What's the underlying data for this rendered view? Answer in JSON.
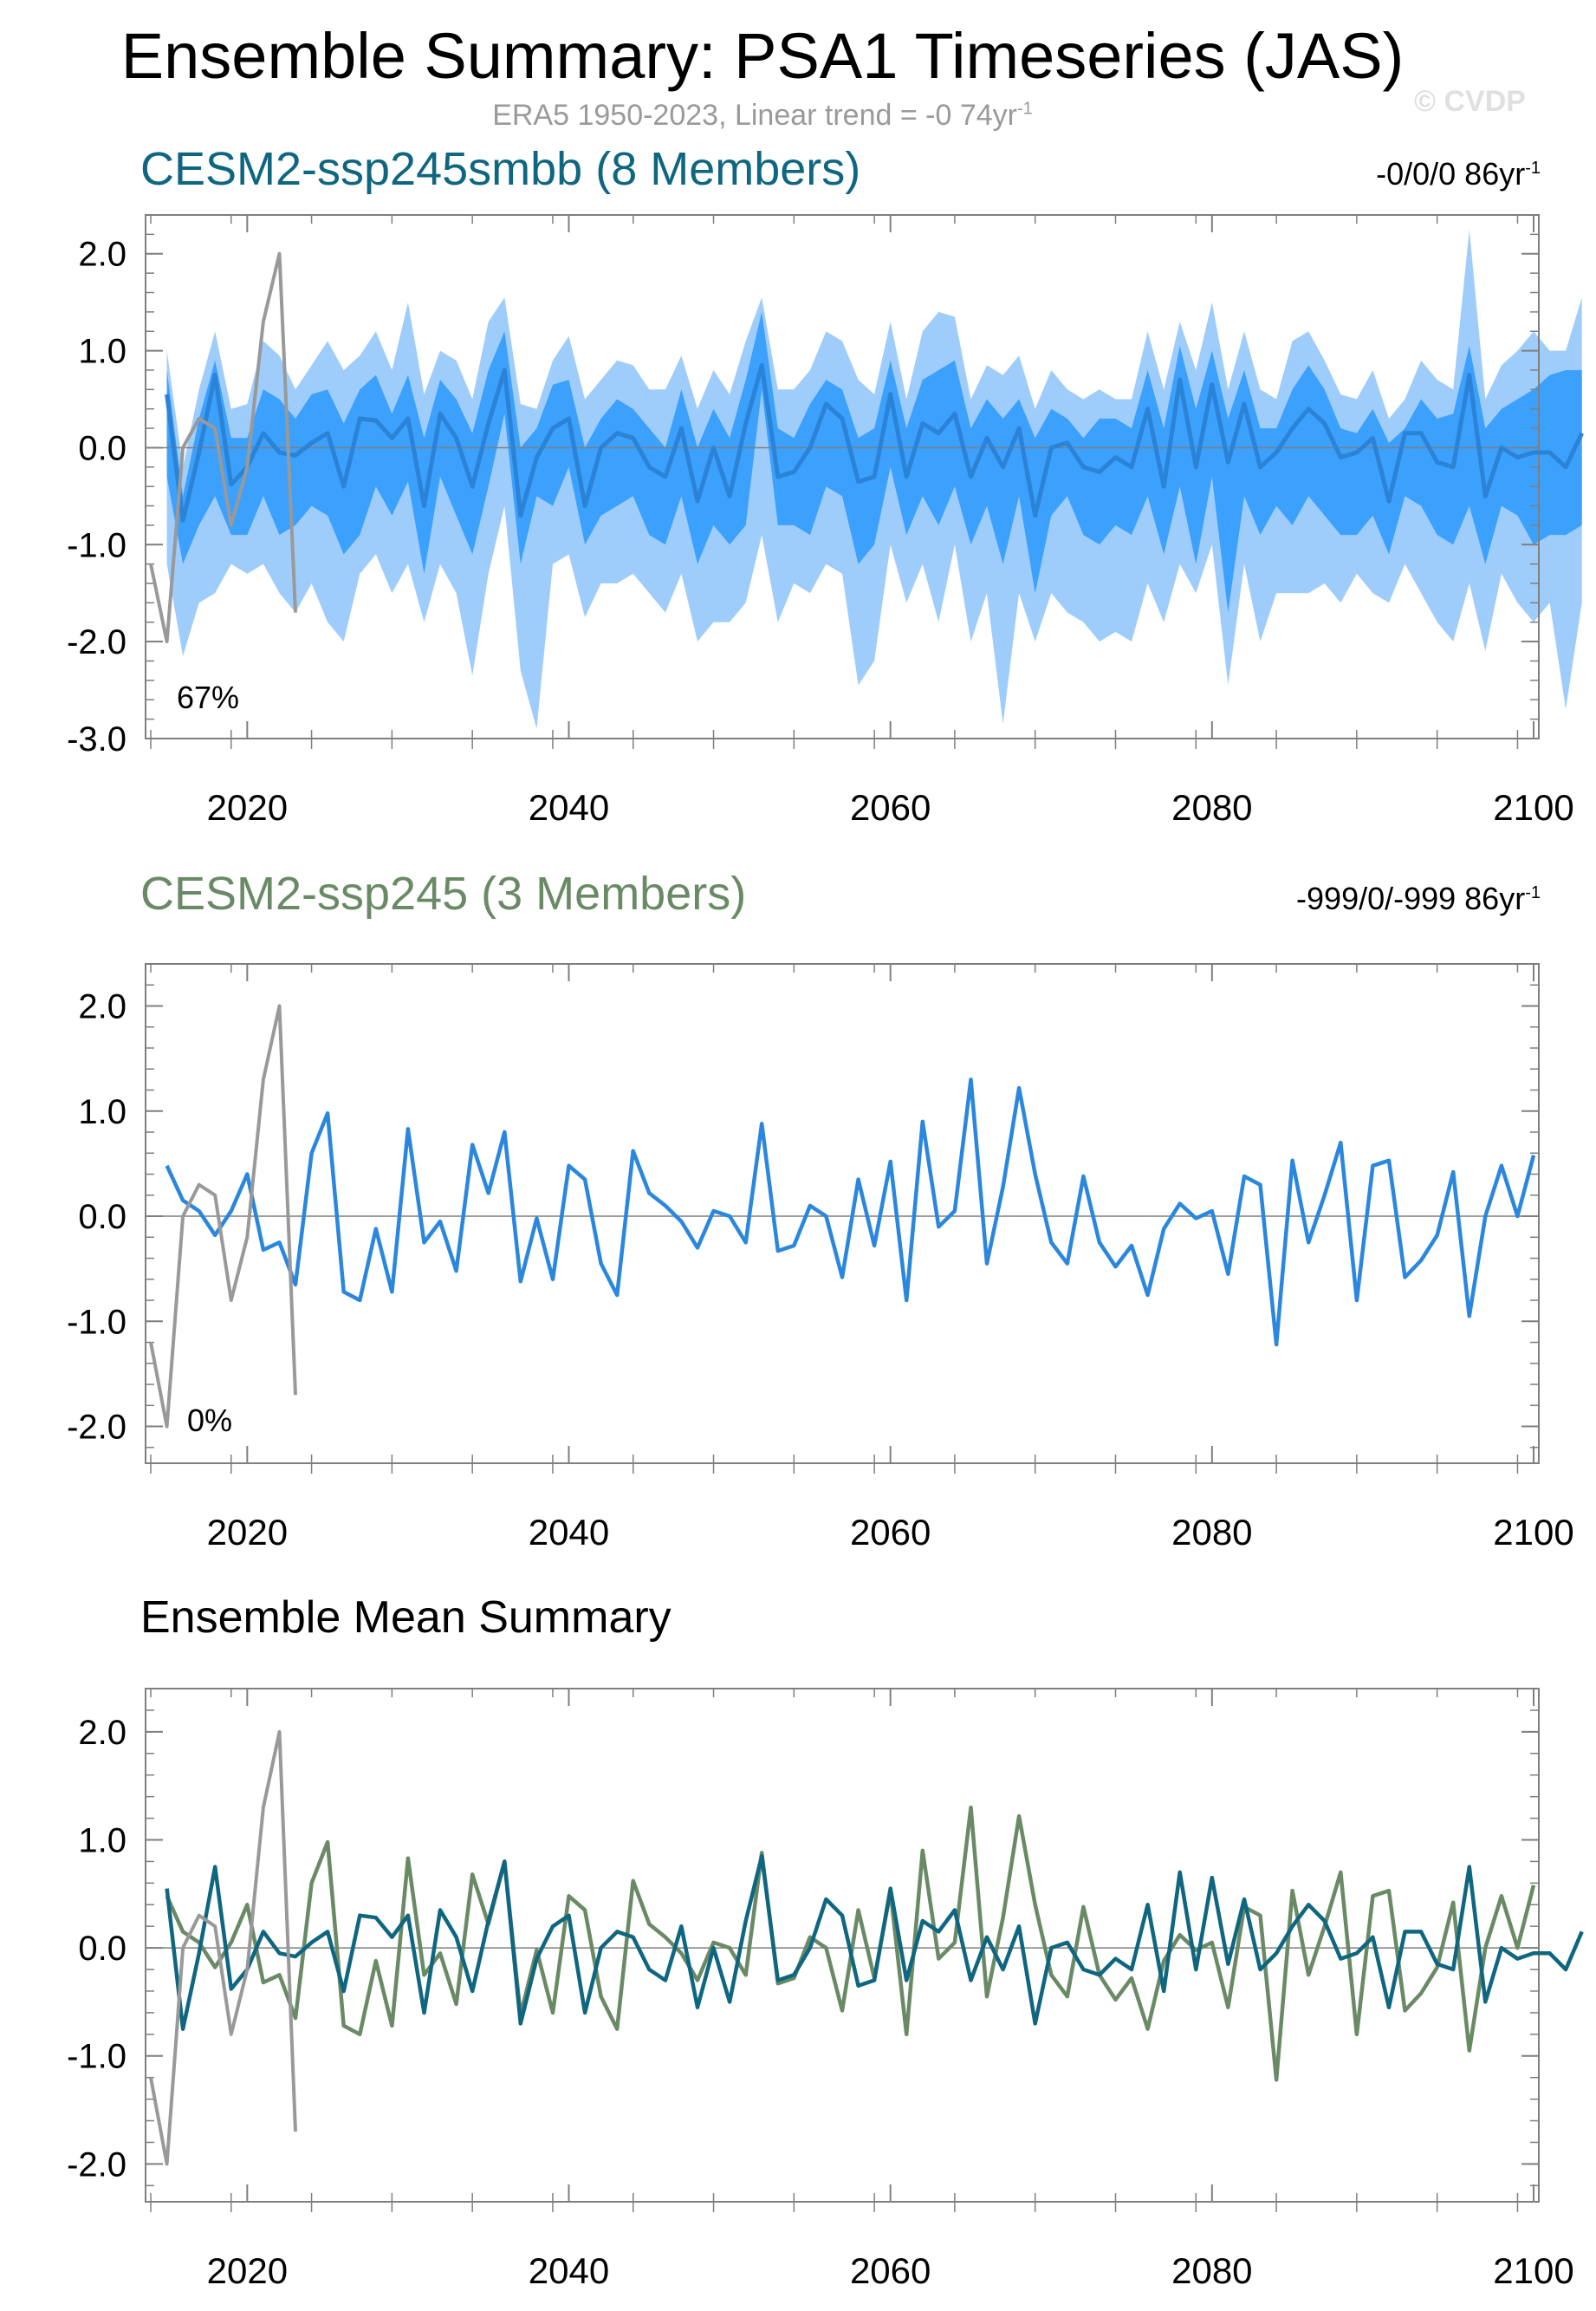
{
  "title": "Ensemble Summary: PSA1 Timeseries (JAS)",
  "subtitle": {
    "text": "ERA5 1950-2023, Linear trend = -0 74yr",
    "sup": "-1"
  },
  "watermark": "© CVDP",
  "colors": {
    "smbb": "#0f6680",
    "smbb_band_outer": "#9fcdfb",
    "smbb_band_inner": "#3ca0fd",
    "smbb_member": "#2a83d6",
    "ssp245": "#6a8a66",
    "ssp245_member": "#2b87dd",
    "obs": "#999999",
    "axis": "#7f7f7f"
  },
  "panels": [
    {
      "title": "CESM2-ssp245smbb (8 Members)",
      "title_color": "#0f6680",
      "trend": "-0/0/0 86yr",
      "trend_sup": "-1",
      "percent": "67%"
    },
    {
      "title": "CESM2-ssp245 (3 Members)",
      "title_color": "#6a8a66",
      "trend": "-999/0/-999 86yr",
      "trend_sup": "-1",
      "percent": "0%"
    },
    {
      "title": "Ensemble Mean Summary",
      "title_color": "#000000",
      "trend": "",
      "trend_sup": "",
      "percent": ""
    }
  ],
  "chart_data": [
    {
      "type": "line",
      "title": "CESM2-ssp245smbb (8 Members)",
      "xlim": [
        2014,
        2100
      ],
      "ylim": [
        -3.0,
        2.4
      ],
      "yticks": [
        "2.0",
        "1.0",
        "0.0",
        "-1.0",
        "-2.0",
        "-3.0"
      ],
      "ytick_values": [
        2.0,
        1.0,
        0.0,
        -1.0,
        -2.0,
        -3.0
      ],
      "xticks": [
        "2020",
        "2040",
        "2060",
        "2080",
        "2100"
      ],
      "xtick_values": [
        2020,
        2040,
        2060,
        2080,
        2100
      ],
      "series": [
        {
          "name": "ERA5 observed",
          "x_start": 2014,
          "values": [
            -1.2,
            -2.0,
            0.0,
            0.3,
            0.2,
            -0.8,
            -0.2,
            1.3,
            2.0,
            -1.7
          ]
        },
        {
          "name": "CESM2-ssp245smbb ensemble mean",
          "x_start": 2015,
          "values": [
            0.55,
            -0.75,
            -0.05,
            0.75,
            -0.38,
            -0.2,
            0.15,
            -0.05,
            -0.08,
            0.05,
            0.15,
            -0.4,
            0.3,
            0.28,
            0.1,
            0.3,
            -0.6,
            0.35,
            0.1,
            -0.4,
            0.25,
            0.8,
            -0.7,
            -0.1,
            0.2,
            0.3,
            -0.6,
            0.0,
            0.15,
            0.1,
            -0.2,
            -0.3,
            0.2,
            -0.55,
            0.0,
            -0.5,
            0.25,
            0.85,
            -0.3,
            -0.25,
            0.0,
            0.45,
            0.3,
            -0.35,
            -0.3,
            0.55,
            -0.3,
            0.25,
            0.15,
            0.35,
            -0.3,
            0.1,
            -0.2,
            0.2,
            -0.7,
            0.0,
            0.05,
            -0.2,
            -0.25,
            -0.1,
            -0.2,
            0.4,
            -0.4,
            0.7,
            -0.2,
            0.65,
            -0.15,
            0.45,
            -0.2,
            -0.05,
            0.2,
            0.4,
            0.25,
            -0.1,
            -0.05,
            0.1,
            -0.55,
            0.15,
            0.15,
            -0.15,
            -0.2,
            0.75,
            -0.5,
            0.0,
            -0.1,
            -0.05,
            -0.05,
            -0.2,
            0.15
          ]
        },
        {
          "name": "ensemble max",
          "x_start": 2015,
          "values": [
            1.0,
            -0.2,
            0.6,
            1.2,
            0.4,
            0.45,
            1.1,
            0.95,
            0.6,
            0.85,
            1.1,
            0.8,
            0.95,
            1.2,
            0.8,
            1.5,
            0.55,
            1.0,
            0.9,
            0.5,
            1.3,
            1.55,
            0.45,
            0.4,
            0.9,
            1.15,
            0.5,
            0.7,
            0.9,
            0.85,
            0.6,
            0.6,
            0.95,
            0.4,
            0.8,
            0.55,
            1.1,
            1.55,
            0.6,
            0.6,
            0.8,
            1.2,
            1.1,
            0.7,
            0.55,
            1.3,
            0.5,
            1.2,
            1.4,
            1.35,
            0.5,
            0.85,
            0.75,
            0.95,
            0.4,
            0.8,
            0.6,
            0.5,
            0.6,
            0.5,
            0.5,
            1.2,
            0.6,
            1.3,
            0.8,
            1.5,
            0.6,
            1.2,
            0.6,
            0.5,
            1.1,
            1.2,
            0.9,
            0.55,
            0.5,
            0.8,
            0.3,
            0.5,
            0.9,
            0.7,
            0.6,
            2.25,
            0.5,
            0.85,
            1.0,
            1.2,
            1.0,
            1.0,
            1.55
          ]
        },
        {
          "name": "ensemble upper",
          "x_start": 2015,
          "values": [
            0.8,
            -0.5,
            0.3,
            0.9,
            0.1,
            0.1,
            0.6,
            0.5,
            0.3,
            0.55,
            0.6,
            0.25,
            0.6,
            0.75,
            0.35,
            0.75,
            0.1,
            0.7,
            0.5,
            0.15,
            0.8,
            1.2,
            0.0,
            0.2,
            0.65,
            0.7,
            0.0,
            0.3,
            0.5,
            0.4,
            0.2,
            0.0,
            0.6,
            0.0,
            0.4,
            0.1,
            0.7,
            1.4,
            0.2,
            0.1,
            0.45,
            0.7,
            0.6,
            0.1,
            0.2,
            0.9,
            0.2,
            0.7,
            0.8,
            0.9,
            0.2,
            0.5,
            0.3,
            0.5,
            0.1,
            0.4,
            0.3,
            0.1,
            0.3,
            0.3,
            0.2,
            0.8,
            0.2,
            1.05,
            0.4,
            1.0,
            0.3,
            0.8,
            0.2,
            0.2,
            0.6,
            0.85,
            0.6,
            0.2,
            0.15,
            0.4,
            0.05,
            0.2,
            0.5,
            0.3,
            0.35,
            1.05,
            0.2,
            0.4,
            0.5,
            0.6,
            0.75,
            0.8,
            0.8
          ]
        },
        {
          "name": "ensemble lower",
          "x_start": 2015,
          "values": [
            -0.3,
            -1.2,
            -0.8,
            -0.5,
            -0.9,
            -0.9,
            -0.5,
            -0.9,
            -0.8,
            -0.6,
            -0.7,
            -1.1,
            -0.9,
            -0.4,
            -0.7,
            -0.35,
            -1.3,
            -0.3,
            -0.7,
            -1.1,
            -0.4,
            0.35,
            -1.2,
            -0.5,
            -0.6,
            -0.2,
            -1.0,
            -0.7,
            -0.6,
            -0.5,
            -0.9,
            -1.0,
            -0.5,
            -1.2,
            -0.8,
            -1.0,
            -0.8,
            0.6,
            -0.8,
            -0.8,
            -0.9,
            -0.4,
            -0.5,
            -1.2,
            -1.0,
            -0.2,
            -0.9,
            -0.5,
            -0.8,
            -0.4,
            -1.0,
            -0.6,
            -1.2,
            -0.5,
            -1.5,
            -0.7,
            -0.5,
            -0.9,
            -1.0,
            -0.8,
            -0.9,
            -0.5,
            -1.1,
            -0.4,
            -1.2,
            -0.3,
            -1.7,
            -0.5,
            -0.9,
            -0.6,
            -0.8,
            -0.5,
            -0.7,
            -0.9,
            -0.9,
            -0.7,
            -1.1,
            -0.5,
            -0.6,
            -0.9,
            -1.0,
            -0.6,
            -1.2,
            -0.6,
            -0.7,
            -1.0,
            -0.9,
            -0.9,
            -0.8
          ]
        },
        {
          "name": "ensemble min",
          "x_start": 2015,
          "values": [
            -1.2,
            -2.15,
            -1.6,
            -1.5,
            -1.2,
            -1.3,
            -1.2,
            -1.5,
            -1.7,
            -1.4,
            -1.8,
            -2.0,
            -1.3,
            -1.1,
            -1.5,
            -1.2,
            -1.8,
            -1.2,
            -1.5,
            -2.35,
            -1.3,
            -0.6,
            -2.3,
            -2.9,
            -1.2,
            -1.1,
            -1.75,
            -1.4,
            -1.4,
            -1.3,
            -1.5,
            -1.7,
            -1.3,
            -2.0,
            -1.8,
            -1.8,
            -1.6,
            -0.9,
            -1.8,
            -1.4,
            -1.5,
            -1.2,
            -1.3,
            -2.45,
            -2.2,
            -1.0,
            -1.6,
            -1.2,
            -1.8,
            -1.0,
            -2.0,
            -1.5,
            -2.85,
            -1.5,
            -2.0,
            -1.5,
            -1.7,
            -1.8,
            -2.0,
            -1.9,
            -2.0,
            -1.4,
            -1.8,
            -1.2,
            -1.5,
            -1.0,
            -2.45,
            -1.2,
            -2.0,
            -1.5,
            -1.5,
            -1.5,
            -1.4,
            -1.6,
            -1.3,
            -1.5,
            -1.6,
            -1.2,
            -1.5,
            -1.8,
            -2.0,
            -1.4,
            -2.1,
            -1.3,
            -1.6,
            -1.8,
            -1.6,
            -2.7,
            -1.6
          ]
        }
      ]
    },
    {
      "type": "line",
      "title": "CESM2-ssp245 (3 Members)",
      "xlim": [
        2014,
        2100
      ],
      "ylim": [
        -2.35,
        2.4
      ],
      "yticks": [
        "2.0",
        "1.0",
        "0.0",
        "-1.0",
        "-2.0"
      ],
      "ytick_values": [
        2.0,
        1.0,
        0.0,
        -1.0,
        -2.0
      ],
      "xticks": [
        "2020",
        "2040",
        "2060",
        "2080",
        "2100"
      ],
      "xtick_values": [
        2020,
        2040,
        2060,
        2080,
        2100
      ],
      "series": [
        {
          "name": "ERA5 observed",
          "x_start": 2014,
          "values": [
            -1.2,
            -2.0,
            0.0,
            0.3,
            0.2,
            -0.8,
            -0.2,
            1.3,
            2.0,
            -1.7
          ]
        },
        {
          "name": "CESM2-ssp245 member",
          "x_start": 2015,
          "values": [
            0.48,
            0.15,
            0.05,
            -0.18,
            0.05,
            0.4,
            -0.32,
            -0.25,
            -0.65,
            0.6,
            0.98,
            -0.72,
            -0.8,
            -0.12,
            -0.72,
            0.83,
            -0.25,
            -0.05,
            -0.52,
            0.68,
            0.22,
            0.8,
            -0.62,
            -0.02,
            -0.6,
            0.48,
            0.35,
            -0.45,
            -0.75,
            0.62,
            0.22,
            0.1,
            -0.05,
            -0.3,
            0.05,
            0.0,
            -0.25,
            0.88,
            -0.33,
            -0.28,
            0.1,
            0.0,
            -0.58,
            0.35,
            -0.28,
            0.52,
            -0.8,
            0.9,
            -0.1,
            0.05,
            1.3,
            -0.45,
            0.28,
            1.22,
            0.4,
            -0.25,
            -0.45,
            0.38,
            -0.25,
            -0.48,
            -0.28,
            -0.75,
            -0.12,
            0.12,
            -0.02,
            0.05,
            -0.55,
            0.38,
            0.3,
            -1.22,
            0.53,
            -0.25,
            0.2,
            0.7,
            -0.8,
            0.48,
            0.53,
            -0.58,
            -0.42,
            -0.18,
            0.42,
            -0.95,
            0.0,
            0.48,
            0.0,
            0.58
          ]
        }
      ]
    },
    {
      "type": "line",
      "title": "Ensemble Mean Summary",
      "xlim": [
        2014,
        2100
      ],
      "ylim": [
        -2.35,
        2.4
      ],
      "yticks": [
        "2.0",
        "1.0",
        "0.0",
        "-1.0",
        "-2.0"
      ],
      "ytick_values": [
        2.0,
        1.0,
        0.0,
        -1.0,
        -2.0
      ],
      "xticks": [
        "2020",
        "2040",
        "2060",
        "2080",
        "2100"
      ],
      "xtick_values": [
        2020,
        2040,
        2060,
        2080,
        2100
      ],
      "series": [
        {
          "name": "ERA5 observed",
          "x_start": 2014,
          "values": [
            -1.2,
            -2.0,
            0.0,
            0.3,
            0.2,
            -0.8,
            -0.2,
            1.3,
            2.0,
            -1.7
          ]
        },
        {
          "name": "CESM2-ssp245smbb ensemble mean",
          "x_start": 2015,
          "values": [
            0.55,
            -0.75,
            -0.05,
            0.75,
            -0.38,
            -0.2,
            0.15,
            -0.05,
            -0.08,
            0.05,
            0.15,
            -0.4,
            0.3,
            0.28,
            0.1,
            0.3,
            -0.6,
            0.35,
            0.1,
            -0.4,
            0.25,
            0.8,
            -0.7,
            -0.1,
            0.2,
            0.3,
            -0.6,
            0.0,
            0.15,
            0.1,
            -0.2,
            -0.3,
            0.2,
            -0.55,
            0.0,
            -0.5,
            0.25,
            0.85,
            -0.3,
            -0.25,
            0.0,
            0.45,
            0.3,
            -0.35,
            -0.3,
            0.55,
            -0.3,
            0.25,
            0.15,
            0.35,
            -0.3,
            0.1,
            -0.2,
            0.2,
            -0.7,
            0.0,
            0.05,
            -0.2,
            -0.25,
            -0.1,
            -0.2,
            0.4,
            -0.4,
            0.7,
            -0.2,
            0.65,
            -0.15,
            0.45,
            -0.2,
            -0.05,
            0.2,
            0.4,
            0.25,
            -0.1,
            -0.05,
            0.1,
            -0.55,
            0.15,
            0.15,
            -0.15,
            -0.2,
            0.75,
            -0.5,
            0.0,
            -0.1,
            -0.05,
            -0.05,
            -0.2,
            0.15
          ]
        },
        {
          "name": "CESM2-ssp245 ensemble mean",
          "x_start": 2015,
          "values": [
            0.48,
            0.15,
            0.05,
            -0.18,
            0.05,
            0.4,
            -0.32,
            -0.25,
            -0.65,
            0.6,
            0.98,
            -0.72,
            -0.8,
            -0.12,
            -0.72,
            0.83,
            -0.25,
            -0.05,
            -0.52,
            0.68,
            0.22,
            0.8,
            -0.62,
            -0.02,
            -0.6,
            0.48,
            0.35,
            -0.45,
            -0.75,
            0.62,
            0.22,
            0.1,
            -0.05,
            -0.3,
            0.05,
            0.0,
            -0.25,
            0.88,
            -0.33,
            -0.28,
            0.1,
            0.0,
            -0.58,
            0.35,
            -0.28,
            0.52,
            -0.8,
            0.9,
            -0.1,
            0.05,
            1.3,
            -0.45,
            0.28,
            1.22,
            0.4,
            -0.25,
            -0.45,
            0.38,
            -0.25,
            -0.48,
            -0.28,
            -0.75,
            -0.12,
            0.12,
            -0.02,
            0.05,
            -0.55,
            0.38,
            0.3,
            -1.22,
            0.53,
            -0.25,
            0.2,
            0.7,
            -0.8,
            0.48,
            0.53,
            -0.58,
            -0.42,
            -0.18,
            0.42,
            -0.95,
            0.0,
            0.48,
            0.0,
            0.58
          ]
        }
      ]
    }
  ]
}
